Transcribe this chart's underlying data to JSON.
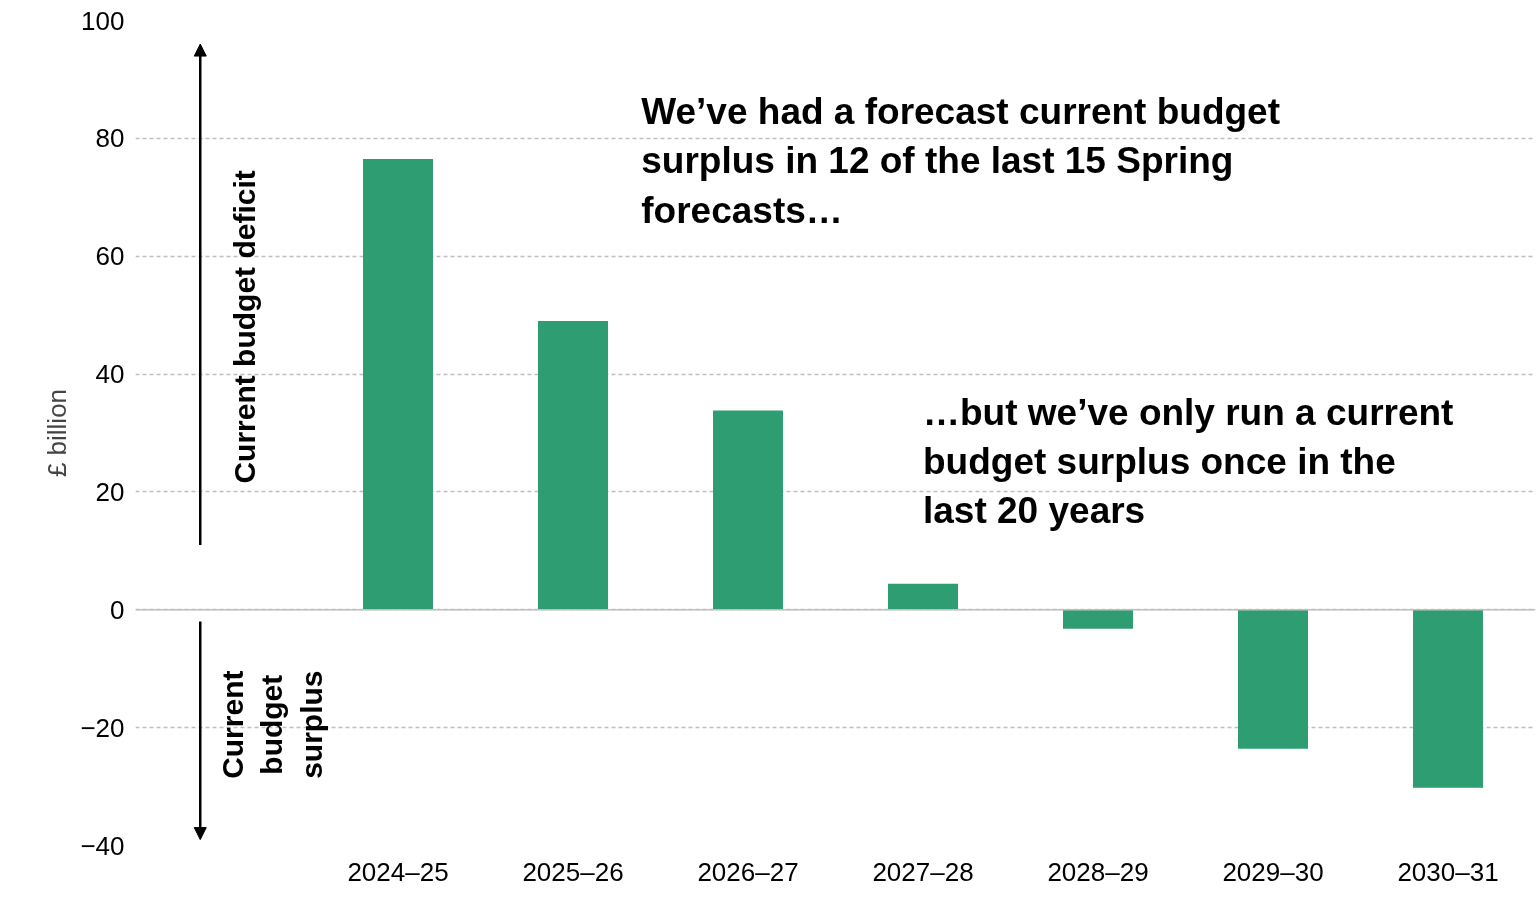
{
  "chart_data": {
    "type": "bar",
    "ylabel": "£ billion",
    "categories": [
      null,
      "2024–25",
      "2025–26",
      "2026–27",
      "2027–28",
      "2028–29",
      "2029–30",
      "2030–31"
    ],
    "values": [
      null,
      76.5,
      49,
      33.8,
      4.4,
      -3.2,
      -23.6,
      -30.2
    ],
    "color": "#2e9e72",
    "ylim": [
      -40,
      100
    ],
    "yticks": [
      -40,
      -20,
      0,
      20,
      40,
      60,
      80,
      100
    ],
    "grid": "y",
    "annotations": [
      "Current budget deficit",
      "Current budget surplus",
      "We’ve had a forecast current budget surplus in 12 of the last 15 Spring forecasts…",
      "…but we’ve only run a current budget surplus once in the last 20 years"
    ]
  }
}
